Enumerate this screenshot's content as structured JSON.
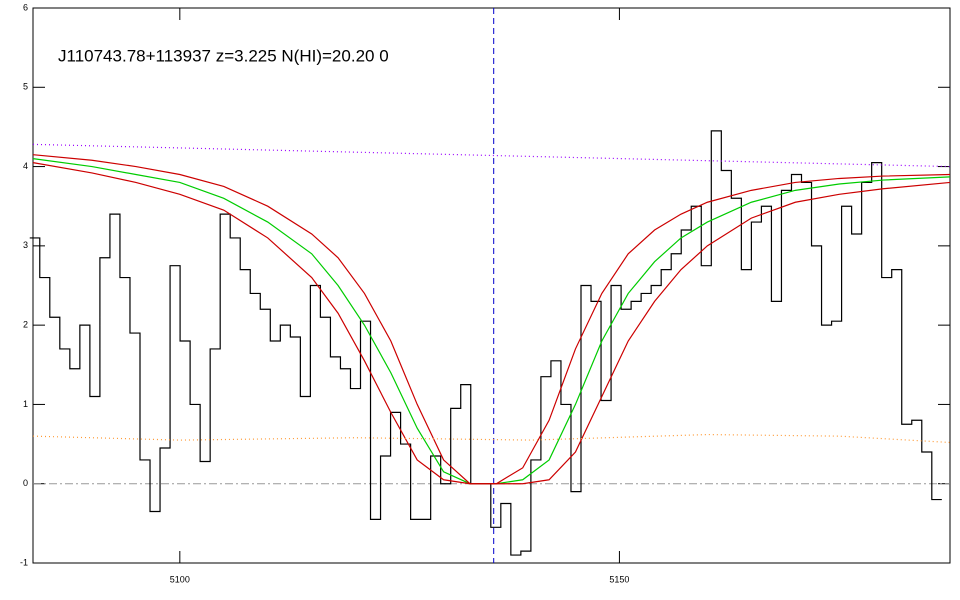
{
  "chart_data": {
    "type": "line",
    "title": "J110743.78+113937 z=3.225 N(HI)=20.20 0",
    "xlim": [
      5083.3,
      5187.6
    ],
    "ylim": [
      -1,
      6
    ],
    "xticks": [
      5100,
      5150
    ],
    "yticks": [
      -1,
      0,
      1,
      2,
      3,
      4,
      5,
      6
    ],
    "vline": 5135.7,
    "vline_color": "#0000cc",
    "hline": 0,
    "hline_color": "#999999",
    "series": [
      {
        "color": "#000000",
        "style": "steps",
        "x": [
          5083.5,
          5084.64,
          5085.78,
          5086.92,
          5088.06,
          5089.2,
          5090.34,
          5091.48,
          5092.62,
          5093.76,
          5094.9,
          5096.04,
          5097.18,
          5098.32,
          5099.46,
          5100.6,
          5101.74,
          5102.88,
          5104.02,
          5105.16,
          5106.3,
          5107.44,
          5108.58,
          5109.72,
          5110.86,
          5112.0,
          5113.14,
          5114.28,
          5115.42,
          5116.56,
          5117.7,
          5118.84,
          5119.98,
          5121.12,
          5122.26,
          5123.4,
          5124.54,
          5125.68,
          5126.82,
          5127.96,
          5129.1,
          5130.24,
          5131.38,
          5132.52,
          5133.66,
          5134.8,
          5135.94,
          5137.08,
          5138.22,
          5139.36,
          5140.5,
          5141.64,
          5142.78,
          5143.92,
          5145.06,
          5146.2,
          5147.34,
          5148.48,
          5149.62,
          5150.76,
          5151.9,
          5153.04,
          5154.18,
          5155.32,
          5156.46,
          5157.6,
          5158.74,
          5159.88,
          5161.02,
          5162.16,
          5163.3,
          5164.44,
          5165.58,
          5166.72,
          5167.86,
          5169.0,
          5170.14,
          5171.28,
          5172.42,
          5173.56,
          5174.7,
          5175.84,
          5176.98,
          5178.12,
          5179.26,
          5180.4,
          5181.54,
          5182.68,
          5183.82,
          5184.96,
          5186.1
        ],
        "values": [
          3.1,
          2.6,
          2.1,
          1.7,
          1.45,
          2.0,
          1.1,
          2.85,
          3.4,
          2.6,
          1.9,
          0.3,
          -0.35,
          0.45,
          2.75,
          1.8,
          1.0,
          0.28,
          1.7,
          3.4,
          3.1,
          2.7,
          2.4,
          2.2,
          1.8,
          2.0,
          1.85,
          1.1,
          2.5,
          2.1,
          1.6,
          1.45,
          1.2,
          2.05,
          -0.45,
          0.35,
          0.9,
          0.5,
          -0.45,
          -0.45,
          0.35,
          0.0,
          0.95,
          1.25,
          0.0,
          0.0,
          -0.55,
          -0.25,
          -0.9,
          -0.85,
          0.3,
          1.35,
          1.55,
          1.0,
          -0.1,
          2.5,
          2.3,
          1.05,
          2.5,
          2.2,
          2.3,
          2.4,
          2.5,
          2.7,
          2.9,
          3.2,
          3.5,
          2.75,
          4.45,
          3.95,
          3.6,
          2.7,
          3.3,
          3.5,
          2.3,
          3.7,
          3.9,
          3.8,
          3.0,
          2.0,
          2.05,
          3.5,
          3.15,
          3.8,
          4.05,
          2.6,
          2.7,
          0.75,
          0.8,
          0.4,
          -0.2
        ]
      },
      {
        "color": "#00cc00",
        "style": "solid",
        "x": [
          5083.3,
          5090,
          5095,
          5100,
          5105,
          5110,
          5115,
          5118,
          5121,
          5124,
          5127,
          5130,
          5133,
          5136,
          5139,
          5142,
          5145,
          5148,
          5151,
          5154,
          5157,
          5160,
          5165,
          5170,
          5175,
          5180,
          5187.6
        ],
        "values": [
          4.1,
          4.0,
          3.9,
          3.8,
          3.6,
          3.3,
          2.9,
          2.5,
          2.0,
          1.4,
          0.7,
          0.15,
          0.0,
          0.0,
          0.05,
          0.3,
          1.0,
          1.8,
          2.4,
          2.8,
          3.1,
          3.3,
          3.55,
          3.7,
          3.78,
          3.83,
          3.87
        ]
      },
      {
        "color": "#cc0000",
        "style": "solid",
        "x": [
          5083.3,
          5090,
          5095,
          5100,
          5105,
          5110,
          5115,
          5118,
          5121,
          5124,
          5127,
          5130,
          5133,
          5136,
          5139,
          5142,
          5145,
          5148,
          5151,
          5154,
          5157,
          5160,
          5165,
          5170,
          5175,
          5180,
          5187.6
        ],
        "values": [
          4.15,
          4.08,
          4.0,
          3.9,
          3.75,
          3.5,
          3.15,
          2.85,
          2.4,
          1.8,
          1.0,
          0.3,
          0.0,
          0.0,
          0.2,
          0.8,
          1.7,
          2.4,
          2.9,
          3.2,
          3.4,
          3.55,
          3.7,
          3.8,
          3.85,
          3.88,
          3.9
        ]
      },
      {
        "color": "#cc0000",
        "style": "solid",
        "x": [
          5083.3,
          5090,
          5095,
          5100,
          5105,
          5110,
          5115,
          5118,
          5121,
          5124,
          5127,
          5130,
          5133,
          5136,
          5139,
          5142,
          5145,
          5148,
          5151,
          5154,
          5157,
          5160,
          5165,
          5170,
          5175,
          5180,
          5187.6
        ],
        "values": [
          4.05,
          3.92,
          3.8,
          3.65,
          3.45,
          3.1,
          2.6,
          2.15,
          1.55,
          0.9,
          0.3,
          0.05,
          0.0,
          0.0,
          0.0,
          0.05,
          0.4,
          1.1,
          1.8,
          2.3,
          2.7,
          3.0,
          3.35,
          3.55,
          3.65,
          3.72,
          3.8
        ]
      },
      {
        "color": "#9900ff",
        "style": "dotted",
        "x": [
          5083.3,
          5187.6
        ],
        "values": [
          4.28,
          4.0
        ]
      },
      {
        "color": "#ff9933",
        "style": "dotted",
        "x": [
          5083.3,
          5100,
          5120,
          5140,
          5160,
          5175,
          5187.6
        ],
        "values": [
          0.6,
          0.55,
          0.58,
          0.55,
          0.62,
          0.6,
          0.52
        ]
      }
    ]
  }
}
